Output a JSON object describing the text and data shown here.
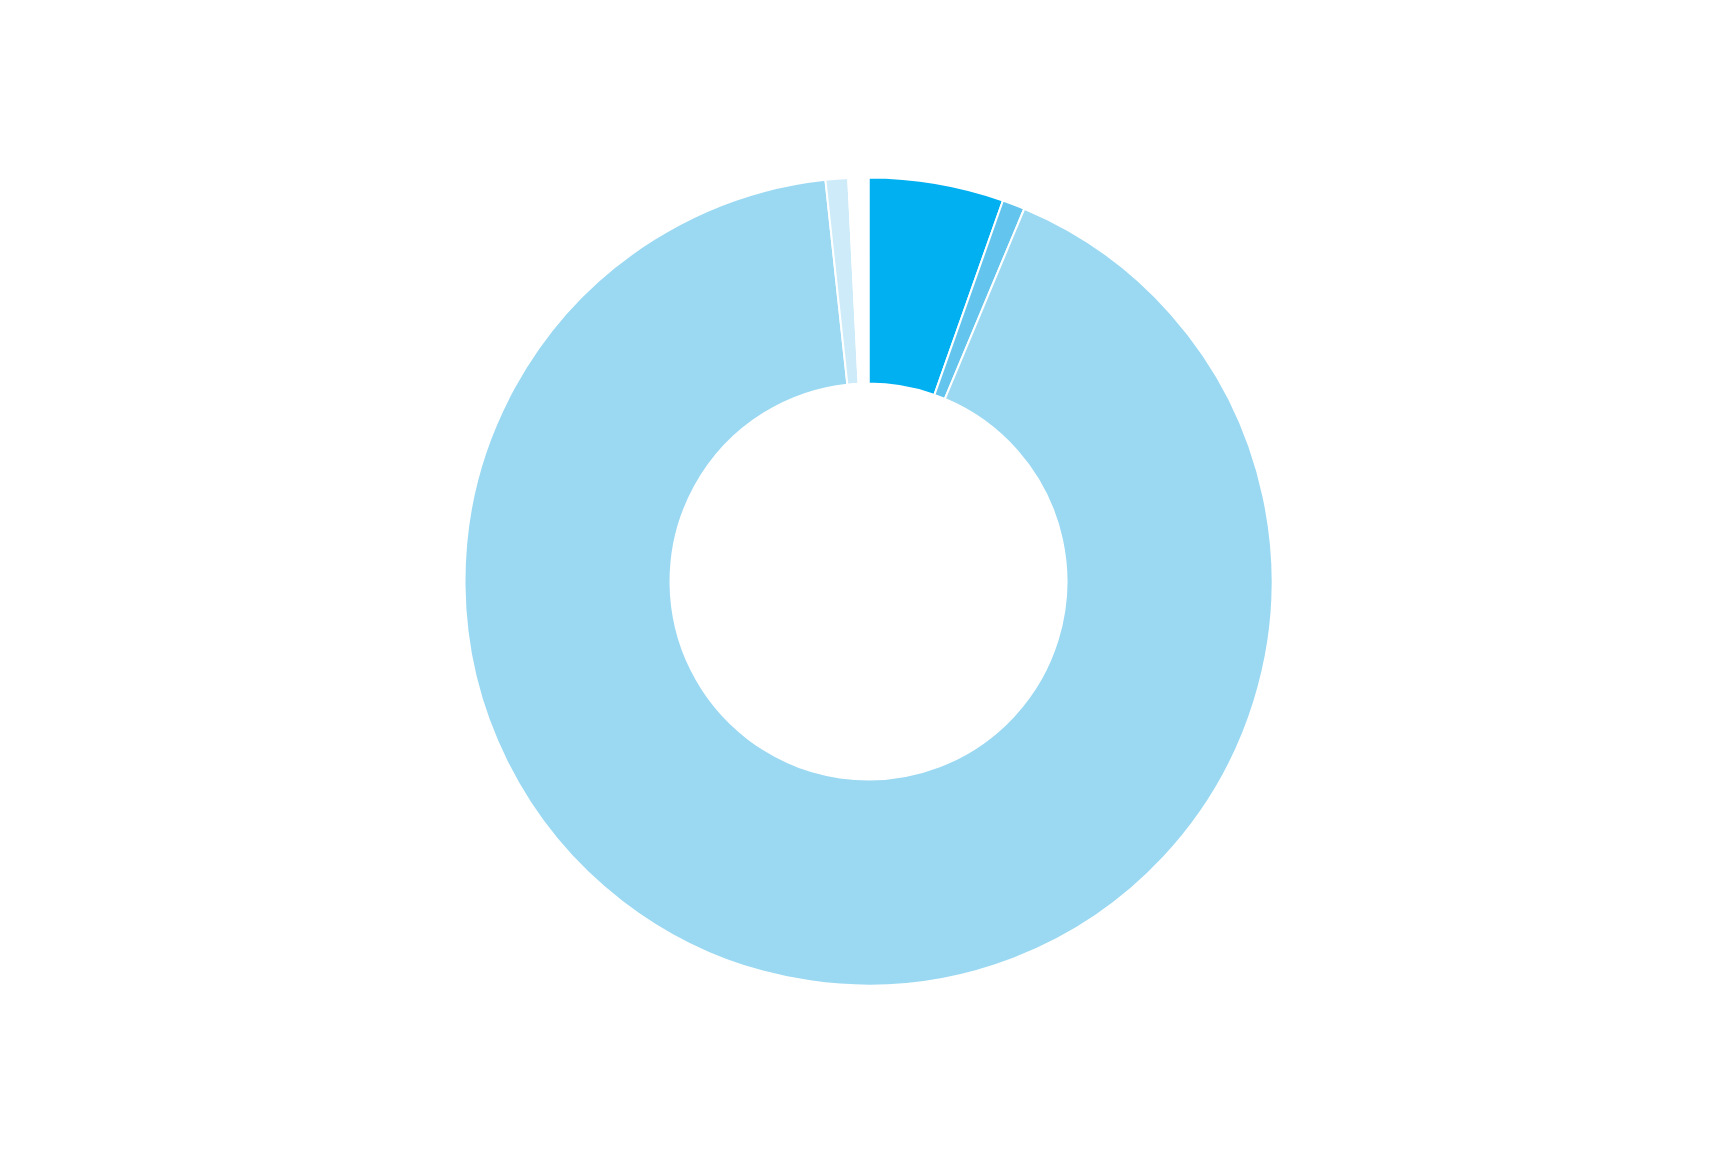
{
  "chart_data": {
    "type": "donut",
    "categories": [
      null,
      null,
      null,
      null,
      null
    ],
    "values": [
      5.4,
      0.9,
      92.0,
      0.9,
      0.8
    ],
    "colors": [
      "#00b0f0",
      "#63c5ee",
      "#9bd9f3",
      "#cdebf8",
      "#ffffff"
    ]
  }
}
